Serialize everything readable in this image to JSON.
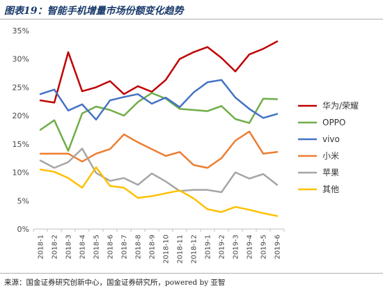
{
  "figure": {
    "title": "图表19：智能手机增量市场份额变化趋势",
    "source": "来源：国金证券研究创新中心，国金证券研究所，powered by 亚智"
  },
  "chart_data": {
    "type": "line",
    "x": [
      "2018-1",
      "2018-2",
      "2018-3",
      "2018-4",
      "2018-5",
      "2018-6",
      "2018-7",
      "2018-8",
      "2018-9",
      "2018-10",
      "2018-11",
      "2018-12",
      "2019-1",
      "2019-2",
      "2019-3",
      "2019-4",
      "2019-5",
      "2019-6"
    ],
    "ylim": [
      0,
      35
    ],
    "yticks": [
      0,
      5,
      10,
      15,
      20,
      25,
      30,
      35
    ],
    "yticks_format": "percent",
    "grid": false,
    "legend_position": "right",
    "series": [
      {
        "name": "华为/荣耀",
        "color": "#c00000",
        "values": [
          22.7,
          22.3,
          31.2,
          24.3,
          25.0,
          26.1,
          23.8,
          25.2,
          24.2,
          26.3,
          30.0,
          31.2,
          32.1,
          30.2,
          27.8,
          30.8,
          31.8,
          33.1
        ]
      },
      {
        "name": "OPPO",
        "color": "#70ad47",
        "values": [
          17.5,
          19.2,
          13.8,
          20.4,
          21.6,
          21.0,
          20.0,
          22.4,
          24.0,
          23.0,
          21.2,
          21.0,
          20.8,
          21.7,
          19.4,
          18.7,
          23.0,
          22.9
        ]
      },
      {
        "name": "vivo",
        "color": "#4472c4",
        "values": [
          23.8,
          24.6,
          20.9,
          22.0,
          19.3,
          22.7,
          23.3,
          23.8,
          22.1,
          23.2,
          21.5,
          24.1,
          25.9,
          26.3,
          23.2,
          21.2,
          19.6,
          20.3
        ]
      },
      {
        "name": "小米",
        "color": "#ed7d31",
        "values": [
          13.3,
          13.3,
          13.3,
          11.9,
          13.3,
          14.1,
          16.7,
          15.3,
          14.1,
          12.9,
          13.6,
          11.3,
          10.8,
          12.5,
          15.6,
          17.2,
          13.3,
          13.6
        ]
      },
      {
        "name": "苹果",
        "color": "#a5a5a5",
        "values": [
          12.1,
          10.8,
          11.8,
          14.2,
          9.9,
          8.5,
          9.0,
          7.8,
          9.8,
          8.4,
          6.7,
          6.9,
          6.9,
          6.5,
          10.0,
          8.9,
          9.7,
          7.8
        ]
      },
      {
        "name": "其他",
        "color": "#ffc000",
        "values": [
          10.5,
          10.1,
          9.0,
          7.3,
          10.9,
          7.6,
          7.3,
          5.5,
          5.8,
          6.3,
          6.8,
          5.4,
          3.5,
          3.0,
          3.9,
          3.4,
          2.8,
          2.3
        ]
      }
    ]
  }
}
